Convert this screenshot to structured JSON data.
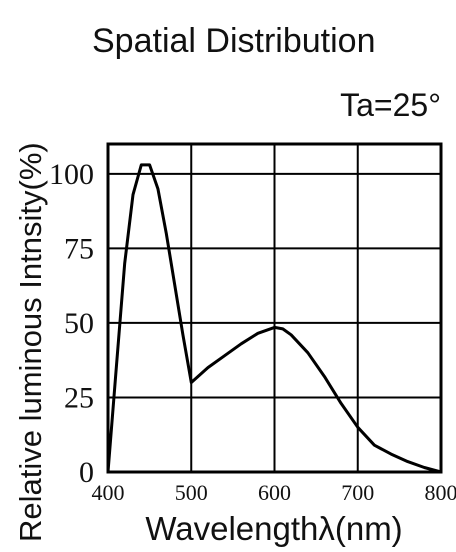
{
  "chart_data": {
    "type": "line",
    "title": "Spatial Distribution",
    "annotation": "Ta=25°",
    "xlabel": "Wavelengthλ(nm)",
    "ylabel": "Relative luminous Intnsity(%)",
    "xlim": [
      400,
      800
    ],
    "ylim": [
      0,
      100
    ],
    "x_ticks": [
      "400",
      "500",
      "600",
      "700",
      "800"
    ],
    "y_ticks": [
      "0",
      "25",
      "50",
      "75",
      "100"
    ],
    "grid": true,
    "line_color": "#000000",
    "series": [
      {
        "x": [
          400,
          410,
          420,
          430,
          440,
          450,
          460,
          470,
          480,
          490,
          500,
          520,
          540,
          560,
          580,
          600,
          610,
          620,
          640,
          660,
          680,
          700,
          720,
          740,
          760,
          780,
          800
        ],
        "values": [
          0,
          35,
          70,
          93,
          103,
          103,
          95,
          80,
          63,
          46,
          30,
          35,
          39,
          43,
          46.5,
          48.5,
          48,
          46,
          40,
          32,
          23,
          15,
          9,
          6,
          3.5,
          1.5,
          0
        ]
      }
    ]
  }
}
